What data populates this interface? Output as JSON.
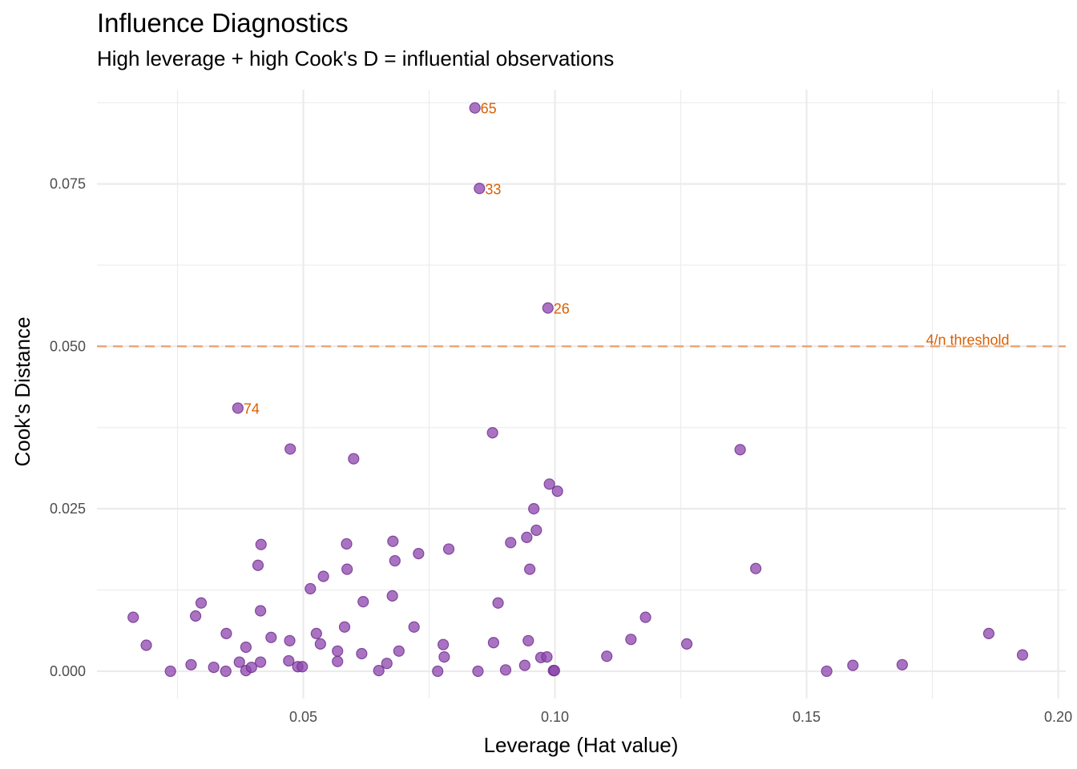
{
  "chart_data": {
    "type": "scatter",
    "title": "Influence Diagnostics",
    "subtitle": "High leverage + high Cook's D = influential observations",
    "xlabel": "Leverage (Hat value)",
    "ylabel": "Cook's Distance",
    "xlim": [
      0.009,
      0.2015
    ],
    "ylim": [
      -0.0042,
      0.0895
    ],
    "x_ticks": [
      0.05,
      0.1,
      0.15,
      0.2
    ],
    "x_tick_labels": [
      "0.05",
      "0.10",
      "0.15",
      "0.20"
    ],
    "x_minor_ticks": [
      0.025,
      0.075,
      0.125,
      0.175
    ],
    "y_ticks": [
      0.0,
      0.025,
      0.05,
      0.075
    ],
    "y_tick_labels": [
      "0.000",
      "0.025",
      "0.050",
      "0.075"
    ],
    "y_minor_ticks": [
      0.0125,
      0.0375,
      0.0625,
      0.0875
    ],
    "grid": true,
    "legend": "none",
    "colors": {
      "point_fill": "#8e44ad",
      "point_stroke": "#6c2a8c",
      "label": "#d95f02",
      "threshold": "#e6945c",
      "grid": "#ebebeb"
    },
    "threshold": {
      "value": 0.05,
      "label": "4/n threshold",
      "style": "dashed"
    },
    "labeled_points": [
      {
        "id": "65",
        "x": 0.0841,
        "y": 0.0867
      },
      {
        "id": "33",
        "x": 0.085,
        "y": 0.0743
      },
      {
        "id": "26",
        "x": 0.0986,
        "y": 0.0559
      },
      {
        "id": "74",
        "x": 0.037,
        "y": 0.0405
      }
    ],
    "points": [
      {
        "x": 0.0162,
        "y": 0.0083
      },
      {
        "x": 0.0188,
        "y": 0.004
      },
      {
        "x": 0.0236,
        "y": 0.0
      },
      {
        "x": 0.0277,
        "y": 0.001
      },
      {
        "x": 0.0286,
        "y": 0.0085
      },
      {
        "x": 0.0297,
        "y": 0.0105
      },
      {
        "x": 0.0322,
        "y": 0.0006
      },
      {
        "x": 0.0346,
        "y": 0.0
      },
      {
        "x": 0.0347,
        "y": 0.0058
      },
      {
        "x": 0.0373,
        "y": 0.0014
      },
      {
        "x": 0.0386,
        "y": 0.0037
      },
      {
        "x": 0.0386,
        "y": 0.0001
      },
      {
        "x": 0.0397,
        "y": 0.0006
      },
      {
        "x": 0.041,
        "y": 0.0163
      },
      {
        "x": 0.0415,
        "y": 0.0014
      },
      {
        "x": 0.0415,
        "y": 0.0093
      },
      {
        "x": 0.0416,
        "y": 0.0195
      },
      {
        "x": 0.0436,
        "y": 0.0052
      },
      {
        "x": 0.0471,
        "y": 0.0016
      },
      {
        "x": 0.0473,
        "y": 0.0047
      },
      {
        "x": 0.0474,
        "y": 0.0342
      },
      {
        "x": 0.0489,
        "y": 0.0007
      },
      {
        "x": 0.0498,
        "y": 0.0007
      },
      {
        "x": 0.0514,
        "y": 0.0127
      },
      {
        "x": 0.0526,
        "y": 0.0058
      },
      {
        "x": 0.0534,
        "y": 0.0042
      },
      {
        "x": 0.054,
        "y": 0.0146
      },
      {
        "x": 0.0568,
        "y": 0.0031
      },
      {
        "x": 0.0568,
        "y": 0.0015
      },
      {
        "x": 0.0582,
        "y": 0.0068
      },
      {
        "x": 0.0586,
        "y": 0.0196
      },
      {
        "x": 0.0587,
        "y": 0.0157
      },
      {
        "x": 0.06,
        "y": 0.0327
      },
      {
        "x": 0.0616,
        "y": 0.0027
      },
      {
        "x": 0.0619,
        "y": 0.0107
      },
      {
        "x": 0.065,
        "y": 0.0001
      },
      {
        "x": 0.0666,
        "y": 0.0012
      },
      {
        "x": 0.0677,
        "y": 0.0116
      },
      {
        "x": 0.0678,
        "y": 0.02
      },
      {
        "x": 0.0682,
        "y": 0.017
      },
      {
        "x": 0.069,
        "y": 0.0031
      },
      {
        "x": 0.072,
        "y": 0.0068
      },
      {
        "x": 0.0729,
        "y": 0.0181
      },
      {
        "x": 0.0767,
        "y": 0.0
      },
      {
        "x": 0.0778,
        "y": 0.0041
      },
      {
        "x": 0.078,
        "y": 0.0022
      },
      {
        "x": 0.0789,
        "y": 0.0188
      },
      {
        "x": 0.0847,
        "y": 0.0
      },
      {
        "x": 0.0876,
        "y": 0.0367
      },
      {
        "x": 0.0878,
        "y": 0.0044
      },
      {
        "x": 0.0887,
        "y": 0.0105
      },
      {
        "x": 0.0902,
        "y": 0.0002
      },
      {
        "x": 0.0912,
        "y": 0.0198
      },
      {
        "x": 0.094,
        "y": 0.0009
      },
      {
        "x": 0.0944,
        "y": 0.0206
      },
      {
        "x": 0.0947,
        "y": 0.0047
      },
      {
        "x": 0.095,
        "y": 0.0157
      },
      {
        "x": 0.0958,
        "y": 0.025
      },
      {
        "x": 0.0963,
        "y": 0.0217
      },
      {
        "x": 0.0972,
        "y": 0.0021
      },
      {
        "x": 0.0984,
        "y": 0.0022
      },
      {
        "x": 0.0989,
        "y": 0.0288
      },
      {
        "x": 0.0997,
        "y": 0.0001
      },
      {
        "x": 0.0999,
        "y": 0.0001
      },
      {
        "x": 0.1005,
        "y": 0.0277
      },
      {
        "x": 0.1103,
        "y": 0.0023
      },
      {
        "x": 0.1151,
        "y": 0.0049
      },
      {
        "x": 0.118,
        "y": 0.0083
      },
      {
        "x": 0.1262,
        "y": 0.0042
      },
      {
        "x": 0.1368,
        "y": 0.0341
      },
      {
        "x": 0.1399,
        "y": 0.0158
      },
      {
        "x": 0.154,
        "y": 0.0
      },
      {
        "x": 0.1592,
        "y": 0.0009
      },
      {
        "x": 0.169,
        "y": 0.001
      },
      {
        "x": 0.1862,
        "y": 0.0058
      },
      {
        "x": 0.1929,
        "y": 0.0025
      }
    ]
  }
}
